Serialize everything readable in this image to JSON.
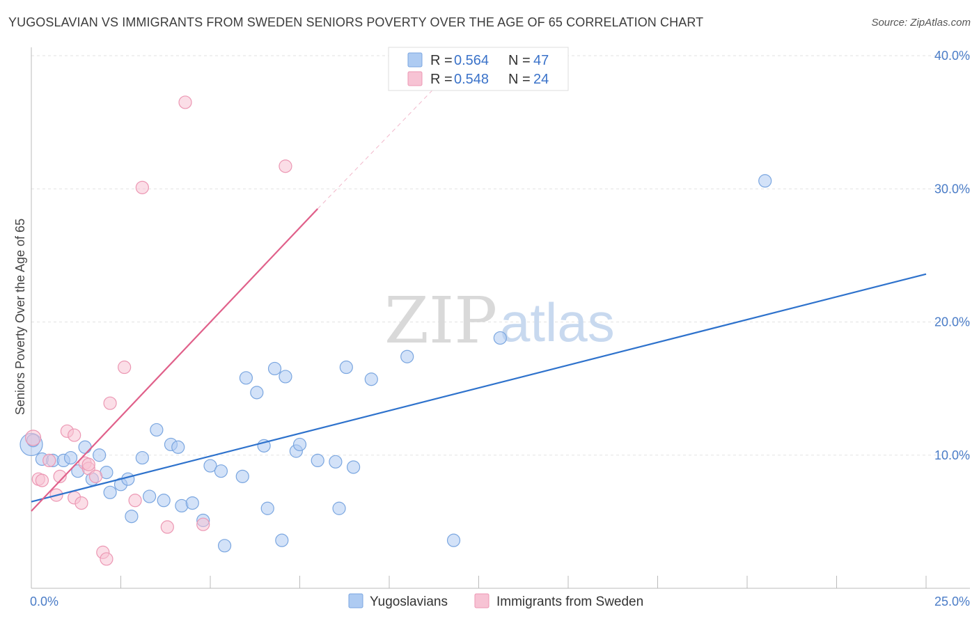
{
  "title": "YUGOSLAVIAN VS IMMIGRANTS FROM SWEDEN SENIORS POVERTY OVER THE AGE OF 65 CORRELATION CHART",
  "source": "Source: ZipAtlas.com",
  "watermark": {
    "zip": "ZIP",
    "atlas": "atlas"
  },
  "colors": {
    "blue_fill": "#aecbf2",
    "blue_stroke": "#7aa6e0",
    "blue_line": "#2e72cc",
    "pink_fill": "#f7c3d4",
    "pink_stroke": "#ec97b3",
    "pink_line": "#e0608a",
    "grid": "#e2e2e2",
    "axis": "#bbbbbb",
    "tick_text": "#4a7cc7"
  },
  "chart_data": {
    "type": "scatter",
    "title": "YUGOSLAVIAN VS IMMIGRANTS FROM SWEDEN SENIORS POVERTY OVER THE AGE OF 65 CORRELATION CHART",
    "xlabel": "",
    "ylabel": "Seniors Poverty Over the Age of 65",
    "xlim": [
      0,
      25
    ],
    "ylim": [
      0,
      42
    ],
    "x_tick_labels": [
      {
        "value": 0,
        "label": "0.0%"
      },
      {
        "value": 25,
        "label": "25.0%"
      }
    ],
    "y_tick_labels": [
      {
        "value": 10,
        "label": "10.0%"
      },
      {
        "value": 20,
        "label": "20.0%"
      },
      {
        "value": 30,
        "label": "30.0%"
      },
      {
        "value": 40,
        "label": "40.0%"
      }
    ],
    "y_grid": [
      10,
      20,
      30,
      40
    ],
    "x_ticks": [
      0,
      2.5,
      5,
      7.5,
      10,
      12.5,
      15,
      17.5,
      20,
      22.5,
      25
    ],
    "legend": [
      {
        "series": "Yugoslavians",
        "r_label": "R = ",
        "r_value": "0.564",
        "n_label": "N = ",
        "n_value": "47"
      },
      {
        "series": "Immigrants from Sweden",
        "r_label": "R = ",
        "r_value": "0.548",
        "n_label": "N = ",
        "n_value": "24"
      }
    ],
    "series": [
      {
        "name": "Yugoslavians",
        "color": "blue",
        "points": [
          [
            0.0,
            10.8,
            16
          ],
          [
            0.3,
            9.7,
            9
          ],
          [
            0.6,
            9.6,
            9
          ],
          [
            0.9,
            9.6,
            9
          ],
          [
            1.1,
            9.8,
            9
          ],
          [
            1.3,
            8.8,
            9
          ],
          [
            1.5,
            10.6,
            9
          ],
          [
            1.7,
            8.2,
            9
          ],
          [
            1.9,
            10.0,
            9
          ],
          [
            2.1,
            8.7,
            9
          ],
          [
            2.2,
            7.2,
            9
          ],
          [
            2.5,
            7.8,
            9
          ],
          [
            2.7,
            8.2,
            9
          ],
          [
            2.8,
            5.4,
            9
          ],
          [
            3.1,
            9.8,
            9
          ],
          [
            3.3,
            6.9,
            9
          ],
          [
            3.5,
            11.9,
            9
          ],
          [
            3.7,
            6.6,
            9
          ],
          [
            3.9,
            10.8,
            9
          ],
          [
            4.1,
            10.6,
            9
          ],
          [
            4.2,
            6.2,
            9
          ],
          [
            4.5,
            6.4,
            9
          ],
          [
            4.8,
            5.1,
            9
          ],
          [
            5.0,
            9.2,
            9
          ],
          [
            5.3,
            8.8,
            9
          ],
          [
            5.4,
            3.2,
            9
          ],
          [
            5.9,
            8.4,
            9
          ],
          [
            6.0,
            15.8,
            9
          ],
          [
            6.3,
            14.7,
            9
          ],
          [
            6.5,
            10.7,
            9
          ],
          [
            6.6,
            6.0,
            9
          ],
          [
            6.8,
            16.5,
            9
          ],
          [
            7.0,
            3.6,
            9
          ],
          [
            7.1,
            15.9,
            9
          ],
          [
            7.4,
            10.3,
            9
          ],
          [
            7.5,
            10.8,
            9
          ],
          [
            8.0,
            9.6,
            9
          ],
          [
            8.5,
            9.5,
            9
          ],
          [
            8.6,
            6.0,
            9
          ],
          [
            8.8,
            16.6,
            9
          ],
          [
            9.0,
            9.1,
            9
          ],
          [
            9.5,
            15.7,
            9
          ],
          [
            10.5,
            17.4,
            9
          ],
          [
            11.8,
            3.6,
            9
          ],
          [
            13.1,
            18.8,
            9
          ],
          [
            20.5,
            30.6,
            9
          ],
          [
            0.05,
            11.1,
            9
          ]
        ],
        "trend": {
          "x": [
            0,
            25
          ],
          "y": [
            6.5,
            23.6
          ]
        }
      },
      {
        "name": "Immigrants from Sweden",
        "color": "pink",
        "points": [
          [
            0.05,
            11.3,
            11
          ],
          [
            0.2,
            8.2,
            9
          ],
          [
            0.3,
            8.1,
            9
          ],
          [
            0.5,
            9.6,
            9
          ],
          [
            0.7,
            7.0,
            9
          ],
          [
            0.8,
            8.4,
            9
          ],
          [
            1.0,
            11.8,
            9
          ],
          [
            1.2,
            11.5,
            9
          ],
          [
            1.2,
            6.8,
            9
          ],
          [
            1.4,
            6.4,
            9
          ],
          [
            1.5,
            9.4,
            9
          ],
          [
            1.6,
            9.0,
            9
          ],
          [
            1.8,
            8.4,
            9
          ],
          [
            2.0,
            2.7,
            9
          ],
          [
            2.1,
            2.2,
            9
          ],
          [
            2.2,
            13.9,
            9
          ],
          [
            2.6,
            16.6,
            9
          ],
          [
            2.9,
            6.6,
            9
          ],
          [
            3.1,
            30.1,
            9
          ],
          [
            3.8,
            4.6,
            9
          ],
          [
            4.3,
            36.5,
            9
          ],
          [
            4.8,
            4.8,
            9
          ],
          [
            7.1,
            31.7,
            9
          ],
          [
            1.6,
            9.3,
            9
          ]
        ],
        "trend": {
          "x": [
            0,
            8.0
          ],
          "y": [
            5.8,
            28.5
          ]
        },
        "trend_extension": {
          "x": [
            8.0,
            11.6
          ],
          "y": [
            28.5,
            38.5
          ]
        }
      }
    ]
  }
}
